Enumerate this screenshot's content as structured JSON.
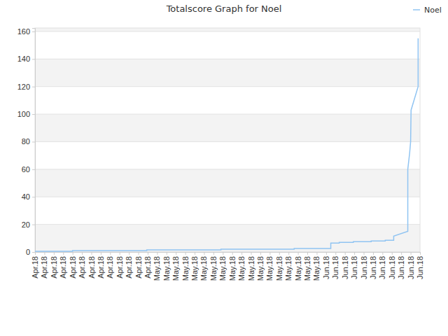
{
  "chart_data": {
    "type": "line",
    "title": "Totalscore Graph for Noel",
    "x": [
      0,
      4,
      4,
      11.9,
      11.9,
      19.8,
      19.8,
      27.6,
      27.6,
      31.5,
      31.5,
      32.4,
      32.4,
      33.9,
      33.9,
      35.8,
      35.8,
      37.3,
      37.3,
      38.2,
      38.2,
      39.7,
      39.7,
      39.9,
      40,
      40.05,
      40.8,
      40.8
    ],
    "series": [
      {
        "name": "Noel",
        "color": "#90c4f2",
        "values": [
          0.5,
          0.5,
          1,
          1,
          1.5,
          1.5,
          2,
          2,
          2.5,
          2.5,
          6.5,
          6.5,
          7,
          7,
          7.5,
          7.5,
          8,
          8,
          8.5,
          8.5,
          11.5,
          15,
          60,
          72,
          80,
          103,
          120,
          155
        ]
      }
    ],
    "xlim": [
      0,
      41
    ],
    "xticks": [
      {
        "value": 0,
        "label": "Apr.18"
      },
      {
        "value": 1,
        "label": "Apr.18"
      },
      {
        "value": 2,
        "label": "Apr.18"
      },
      {
        "value": 3,
        "label": "Apr.18"
      },
      {
        "value": 4,
        "label": "Apr.18"
      },
      {
        "value": 5,
        "label": "Apr.18"
      },
      {
        "value": 6,
        "label": "Apr.18"
      },
      {
        "value": 7,
        "label": "Apr.18"
      },
      {
        "value": 8,
        "label": "Apr.18"
      },
      {
        "value": 9,
        "label": "Apr.18"
      },
      {
        "value": 10,
        "label": "Apr.18"
      },
      {
        "value": 11,
        "label": "Apr.18"
      },
      {
        "value": 12,
        "label": "Apr.18"
      },
      {
        "value": 13,
        "label": "May.18"
      },
      {
        "value": 14,
        "label": "May.18"
      },
      {
        "value": 15,
        "label": "May.18"
      },
      {
        "value": 16,
        "label": "May.18"
      },
      {
        "value": 17,
        "label": "May.18"
      },
      {
        "value": 18,
        "label": "May.18"
      },
      {
        "value": 19,
        "label": "May.18"
      },
      {
        "value": 20,
        "label": "May.18"
      },
      {
        "value": 21,
        "label": "May.18"
      },
      {
        "value": 22,
        "label": "May.18"
      },
      {
        "value": 23,
        "label": "May.18"
      },
      {
        "value": 24,
        "label": "May.18"
      },
      {
        "value": 25,
        "label": "May.18"
      },
      {
        "value": 26,
        "label": "May.18"
      },
      {
        "value": 27,
        "label": "May.18"
      },
      {
        "value": 28,
        "label": "May.18"
      },
      {
        "value": 29,
        "label": "May.18"
      },
      {
        "value": 30,
        "label": "May.18"
      },
      {
        "value": 31,
        "label": "Jun.18"
      },
      {
        "value": 32,
        "label": "Jun.18"
      },
      {
        "value": 33,
        "label": "Jun.18"
      },
      {
        "value": 34,
        "label": "Jun.18"
      },
      {
        "value": 35,
        "label": "Jun.18"
      },
      {
        "value": 36,
        "label": "Jun.18"
      },
      {
        "value": 37,
        "label": "Jun.18"
      },
      {
        "value": 38,
        "label": "Jun.18"
      },
      {
        "value": 39,
        "label": "Jun.18"
      },
      {
        "value": 40,
        "label": "Jun.18"
      },
      {
        "value": 41,
        "label": "Jun.18"
      }
    ],
    "ylim": [
      0,
      162.5
    ],
    "yticks": [
      0,
      20,
      40,
      60,
      80,
      100,
      120,
      140,
      160
    ],
    "grid": true,
    "legend": "top-right"
  }
}
